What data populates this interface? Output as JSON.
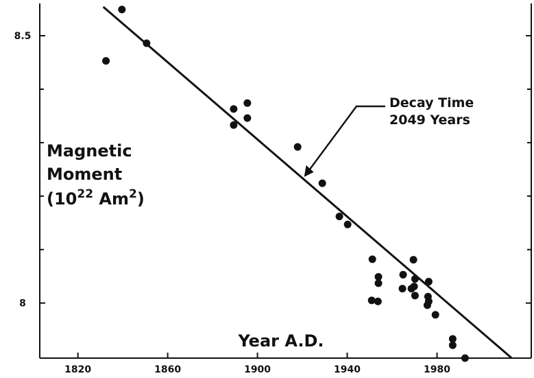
{
  "chart_data": {
    "type": "scatter",
    "xlabel": "Year A.D.",
    "ylabel": {
      "lines": [
        "Magnetic",
        "Moment"
      ],
      "unit": [
        "(10",
        "22",
        " Am",
        "2",
        ")"
      ]
    },
    "x": [
      1832.5,
      1839.6,
      1850.6,
      1889.4,
      1889.4,
      1895.5,
      1895.5,
      1917.9,
      1928.9,
      1936.5,
      1940.2,
      1951.2,
      1950.9,
      1953.7,
      1953.9,
      1953.9,
      1964.9,
      1964.6,
      1969.5,
      1970.2,
      1969.8,
      1970.2,
      1968.6,
      1976.3,
      1976.0,
      1975.7,
      1976.3,
      1979.3,
      1987.0,
      1987.0,
      1992.5
    ],
    "values": [
      8.453,
      8.549,
      8.486,
      8.363,
      8.333,
      8.374,
      8.346,
      8.292,
      8.224,
      8.162,
      8.147,
      8.082,
      8.005,
      8.003,
      8.049,
      8.037,
      8.053,
      8.027,
      8.081,
      8.045,
      8.031,
      8.014,
      8.027,
      8.04,
      8.012,
      7.996,
      8.003,
      7.978,
      7.933,
      7.921,
      7.897
    ],
    "color": "#111111",
    "fit_line": {
      "x": [
        1831.3,
        2013.3
      ],
      "values": [
        8.554,
        7.897
      ]
    },
    "annotation": {
      "lines": [
        "Decay Time",
        "2049 Years"
      ],
      "x": 1920.8,
      "y": 8.236
    },
    "xlim": [
      1803,
      2022
    ],
    "ylim": [
      7.897,
      8.554
    ],
    "xticks": [
      1820,
      1860,
      1900,
      1940,
      1980
    ],
    "yticks": [
      8.0,
      8.5
    ],
    "yminor_ticks": [
      8.1,
      8.2,
      8.3,
      8.4
    ]
  }
}
